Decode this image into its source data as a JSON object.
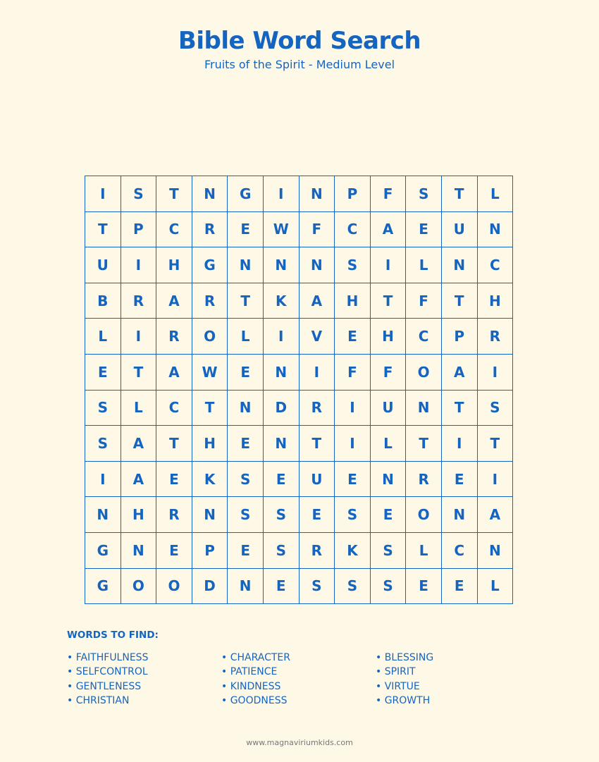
{
  "header": {
    "title": "Bible Word Search",
    "subtitle": "Fruits of the Spirit - Medium Level"
  },
  "colors": {
    "accent": "#1565c0",
    "background": "#fef8e6"
  },
  "grid": [
    "ISTNGINPFSTL",
    "TPCREWFCAEUN",
    "UIHGNNNSILNC",
    "BRARTKAHTFTH",
    "LIROLIVEHCPR",
    "ETAWENIFFOAI",
    "SLCTNDRIUNTS",
    "SATHENTILTIT",
    "IAEKSEUENREI",
    "NHRNSSESEONA",
    "GNEPESRKSLCN",
    "GOODNESSSEEL"
  ],
  "words": {
    "heading": "WORDS TO FIND:",
    "columns": [
      [
        "• FAITHFULNESS",
        "• SELFCONTROL",
        "• GENTLENESS",
        "• CHRISTIAN"
      ],
      [
        "• CHARACTER",
        "• PATIENCE",
        "• KINDNESS",
        "• GOODNESS"
      ],
      [
        "• BLESSING",
        "• SPIRIT",
        "• VIRTUE",
        "• GROWTH"
      ]
    ]
  },
  "footer": "www.magnaviriumkids.com"
}
